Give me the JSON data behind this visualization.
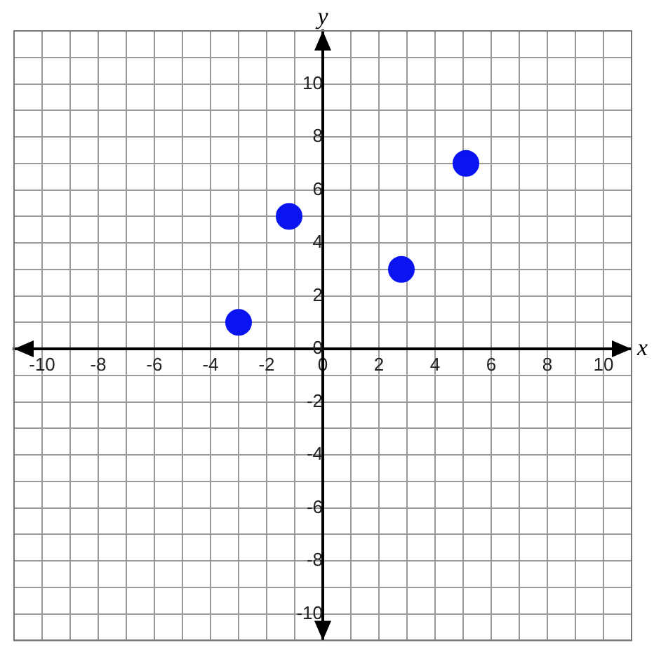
{
  "chart_data": {
    "type": "scatter",
    "xlabel": "x",
    "ylabel": "y",
    "x": [
      -3,
      -1.2,
      2.8,
      5.1
    ],
    "values": [
      1,
      5,
      3,
      7
    ],
    "color": "#0a14f0",
    "marker": "circle",
    "grid": true,
    "xlim": [
      -11,
      11
    ],
    "ylim": [
      -11,
      12
    ],
    "xticks": [
      {
        "value": -11,
        "label": null
      },
      -10,
      {
        "value": -9,
        "label": null
      },
      -8,
      {
        "value": -7,
        "label": null
      },
      -6,
      {
        "value": -5,
        "label": null
      },
      -4,
      {
        "value": -3,
        "label": null
      },
      -2,
      {
        "value": -1,
        "label": null
      },
      0,
      {
        "value": 1,
        "label": null
      },
      2,
      {
        "value": 3,
        "label": null
      },
      4,
      {
        "value": 5,
        "label": null
      },
      6,
      {
        "value": 7,
        "label": null
      },
      8,
      {
        "value": 9,
        "label": null
      },
      10,
      {
        "value": 11,
        "label": null
      }
    ],
    "yticks": [
      {
        "value": -11,
        "label": null
      },
      -10,
      {
        "value": -9,
        "label": null
      },
      -8,
      {
        "value": -7,
        "label": null
      },
      -6,
      {
        "value": -5,
        "label": null
      },
      -4,
      {
        "value": -3,
        "label": null
      },
      -2,
      {
        "value": -1,
        "label": null
      },
      0,
      {
        "value": 1,
        "label": null
      },
      2,
      {
        "value": 3,
        "label": null
      },
      4,
      {
        "value": 5,
        "label": null
      },
      6,
      {
        "value": 7,
        "label": null
      },
      8,
      {
        "value": 9,
        "label": null
      },
      10,
      {
        "value": 11,
        "label": null
      },
      {
        "value": 12,
        "label": null
      }
    ]
  }
}
